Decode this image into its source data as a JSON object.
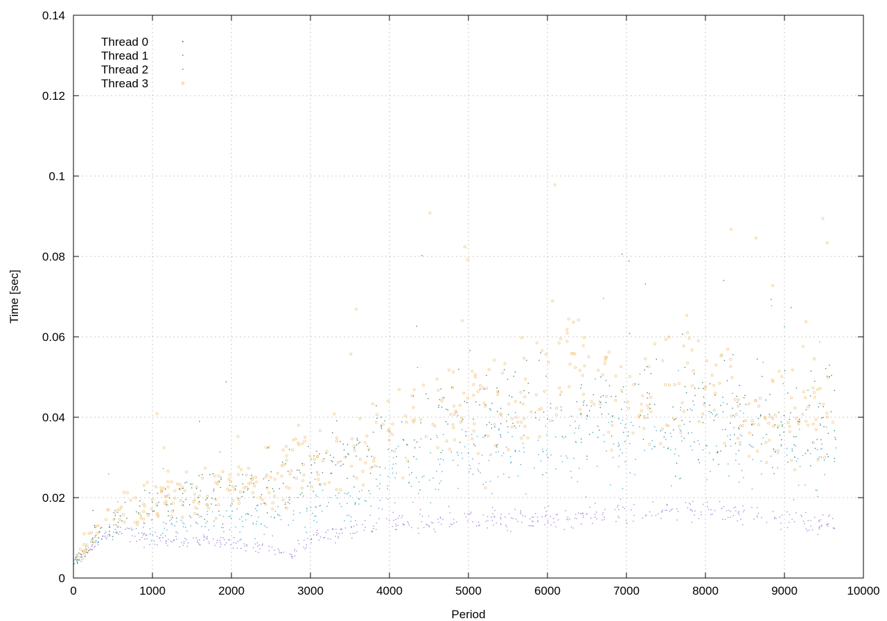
{
  "chart_data": {
    "type": "scatter",
    "title": "",
    "xlabel": "Period",
    "ylabel": "Time [sec]",
    "xlim": [
      0,
      10000
    ],
    "ylim": [
      0,
      0.14
    ],
    "x_ticks": [
      "0",
      "1000",
      "2000",
      "3000",
      "4000",
      "5000",
      "6000",
      "7000",
      "8000",
      "9000",
      "10000"
    ],
    "y_ticks": [
      "0",
      "0.02",
      "0.04",
      "0.06",
      "0.08",
      "0.1",
      "0.12",
      "0.14"
    ],
    "grid": true,
    "legend_position": "top-left",
    "x_max_observed": 9660,
    "series": [
      {
        "name": "Thread 0",
        "color": "#1f6e5a",
        "marker": "dot",
        "approx_trend": {
          "x": [
            0,
            500,
            1000,
            2000,
            3000,
            3500,
            4000,
            5000,
            6000,
            7000,
            8000,
            9000,
            9660
          ],
          "y": [
            0.004,
            0.014,
            0.018,
            0.022,
            0.026,
            0.03,
            0.035,
            0.04,
            0.042,
            0.042,
            0.044,
            0.04,
            0.04
          ]
        }
      },
      {
        "name": "Thread 1",
        "color": "#2a9fd0",
        "marker": "dot",
        "approx_trend": {
          "x": [
            0,
            500,
            1000,
            2000,
            3000,
            3500,
            4000,
            5000,
            6000,
            7000,
            8000,
            9000,
            9660
          ],
          "y": [
            0.004,
            0.013,
            0.012,
            0.014,
            0.016,
            0.018,
            0.025,
            0.03,
            0.034,
            0.034,
            0.034,
            0.03,
            0.03
          ]
        }
      },
      {
        "name": "Thread 2",
        "color": "#9b6fd6",
        "marker": "dot",
        "approx_trend": {
          "x": [
            0,
            500,
            1000,
            2000,
            2800,
            3000,
            3500,
            4000,
            5000,
            6000,
            7000,
            8000,
            9000,
            9660
          ],
          "y": [
            0.004,
            0.012,
            0.009,
            0.009,
            0.006,
            0.01,
            0.012,
            0.014,
            0.014,
            0.015,
            0.016,
            0.017,
            0.015,
            0.013
          ]
        }
      },
      {
        "name": "Thread 3",
        "color": "#f0b860",
        "marker": "circle",
        "approx_trend": {
          "x": [
            0,
            500,
            1000,
            2000,
            3000,
            3500,
            4000,
            4500,
            5000,
            6000,
            6300,
            7000,
            7500,
            8000,
            8500,
            9000,
            9660
          ],
          "y": [
            0.004,
            0.016,
            0.018,
            0.022,
            0.028,
            0.03,
            0.035,
            0.04,
            0.042,
            0.046,
            0.055,
            0.04,
            0.045,
            0.055,
            0.04,
            0.042,
            0.04
          ]
        }
      }
    ]
  }
}
